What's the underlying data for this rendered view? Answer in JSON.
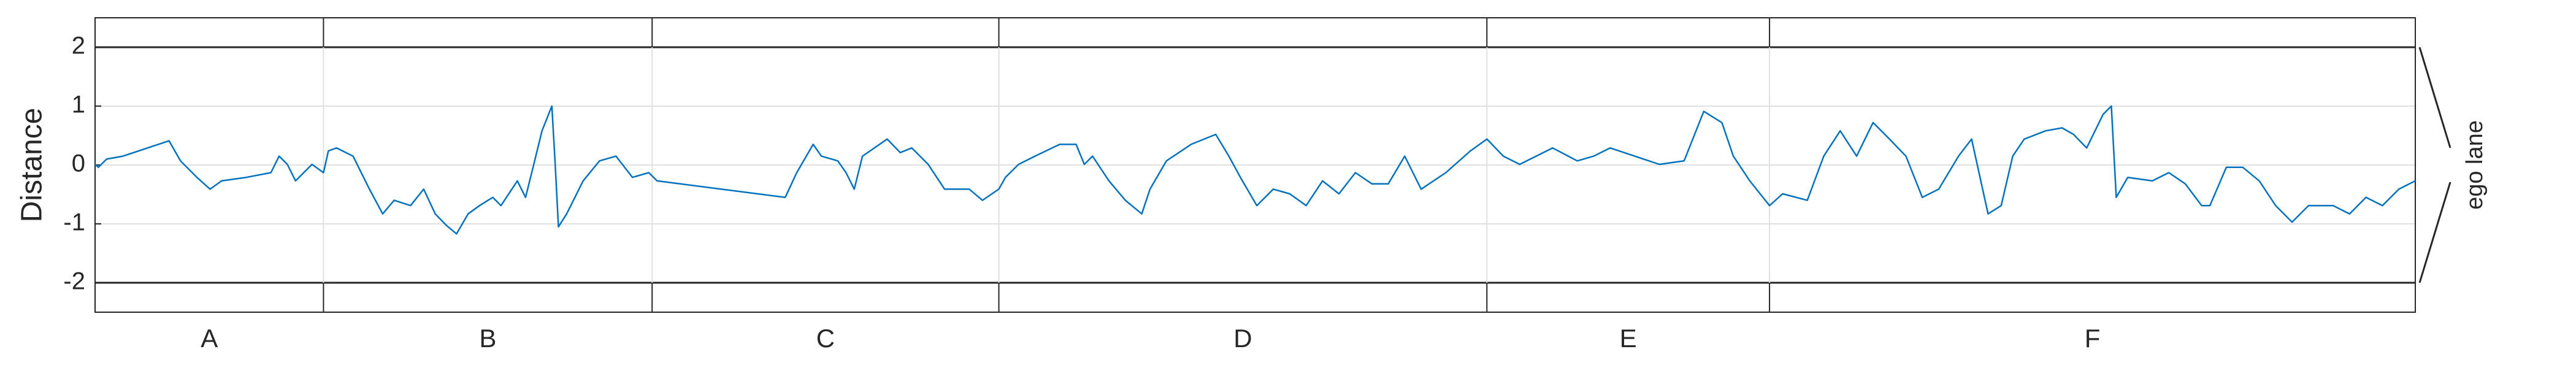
{
  "chart_data": {
    "type": "line",
    "ylabel": "Distance",
    "xlim": [
      0,
      1412
    ],
    "ylim": [
      -2.5,
      2.5
    ],
    "yticks": [
      -2,
      -1,
      0,
      1,
      2
    ],
    "grid": true,
    "lane": {
      "label": "ego lane",
      "bounds": [
        -2,
        2
      ]
    },
    "sections": [
      {
        "label": "A",
        "start": 0,
        "end": 139
      },
      {
        "label": "B",
        "start": 139,
        "end": 339
      },
      {
        "label": "C",
        "start": 339,
        "end": 550
      },
      {
        "label": "D",
        "start": 550,
        "end": 847
      },
      {
        "label": "E",
        "start": 847,
        "end": 1019
      },
      {
        "label": "F",
        "start": 1019,
        "end": 1412
      }
    ],
    "series": [
      {
        "color": "#0072bd",
        "x": [
          0,
          2,
          7,
          17,
          32,
          45,
          52,
          62,
          70,
          77,
          92,
          107,
          112,
          117,
          122,
          132,
          139,
          142,
          147,
          157,
          167,
          175,
          182,
          192,
          200,
          207,
          214,
          220,
          227,
          234,
          242,
          247,
          257,
          262,
          267,
          272,
          278,
          280,
          282,
          287,
          292,
          297,
          307,
          317,
          327,
          337,
          342,
          420,
          427,
          437,
          442,
          452,
          457,
          462,
          467,
          482,
          490,
          497,
          507,
          517,
          532,
          540,
          550,
          554,
          562,
          572,
          587,
          597,
          602,
          607,
          617,
          627,
          637,
          642,
          652,
          667,
          682,
          690,
          697,
          707,
          717,
          727,
          737,
          747,
          757,
          767,
          777,
          787,
          797,
          807,
          822,
          837,
          847,
          857,
          867,
          877,
          887,
          902,
          912,
          922,
          937,
          952,
          967,
          979,
          990,
          997,
          1007,
          1019,
          1027,
          1042,
          1052,
          1062,
          1072,
          1082,
          1092,
          1102,
          1112,
          1122,
          1134,
          1142,
          1152,
          1160,
          1167,
          1174,
          1187,
          1197,
          1204,
          1212,
          1222,
          1227,
          1230,
          1237,
          1252,
          1262,
          1272,
          1282,
          1287,
          1297,
          1307,
          1317,
          1327,
          1337,
          1347,
          1362,
          1372,
          1382,
          1392,
          1402,
          1412
        ],
        "values": [
          0.01,
          -0.04,
          0.1,
          0.15,
          0.29,
          0.41,
          0.07,
          -0.21,
          -0.41,
          -0.27,
          -0.21,
          -0.13,
          0.15,
          0.01,
          -0.27,
          0.01,
          -0.13,
          0.24,
          0.29,
          0.15,
          -0.41,
          -0.83,
          -0.6,
          -0.69,
          -0.41,
          -0.83,
          -1.03,
          -1.17,
          -0.83,
          -0.69,
          -0.55,
          -0.69,
          -0.27,
          -0.55,
          0.01,
          0.58,
          1.0,
          0.01,
          -1.05,
          -0.83,
          -0.55,
          -0.27,
          0.07,
          0.15,
          -0.21,
          -0.13,
          -0.27,
          -0.55,
          -0.13,
          0.35,
          0.15,
          0.07,
          -0.13,
          -0.41,
          0.15,
          0.44,
          0.21,
          0.29,
          0.01,
          -0.41,
          -0.41,
          -0.6,
          -0.41,
          -0.21,
          0.01,
          0.15,
          0.35,
          0.35,
          0.01,
          0.15,
          -0.27,
          -0.6,
          -0.83,
          -0.41,
          0.07,
          0.35,
          0.52,
          0.15,
          -0.21,
          -0.69,
          -0.41,
          -0.49,
          -0.69,
          -0.27,
          -0.49,
          -0.13,
          -0.32,
          -0.32,
          0.15,
          -0.41,
          -0.13,
          0.24,
          0.44,
          0.15,
          0.01,
          0.15,
          0.29,
          0.07,
          0.15,
          0.29,
          0.15,
          0.01,
          0.07,
          0.91,
          0.72,
          0.15,
          -0.27,
          -0.69,
          -0.49,
          -0.6,
          0.15,
          0.58,
          0.15,
          0.72,
          0.44,
          0.15,
          -0.55,
          -0.41,
          0.15,
          0.44,
          -0.83,
          -0.69,
          0.15,
          0.44,
          0.58,
          0.63,
          0.52,
          0.29,
          0.86,
          1.0,
          -0.55,
          -0.21,
          -0.27,
          -0.13,
          -0.32,
          -0.69,
          -0.69,
          -0.04,
          -0.04,
          -0.27,
          -0.69,
          -0.97,
          -0.69,
          -0.69,
          -0.83,
          -0.55,
          -0.69,
          -0.41,
          -0.27
        ]
      }
    ]
  }
}
